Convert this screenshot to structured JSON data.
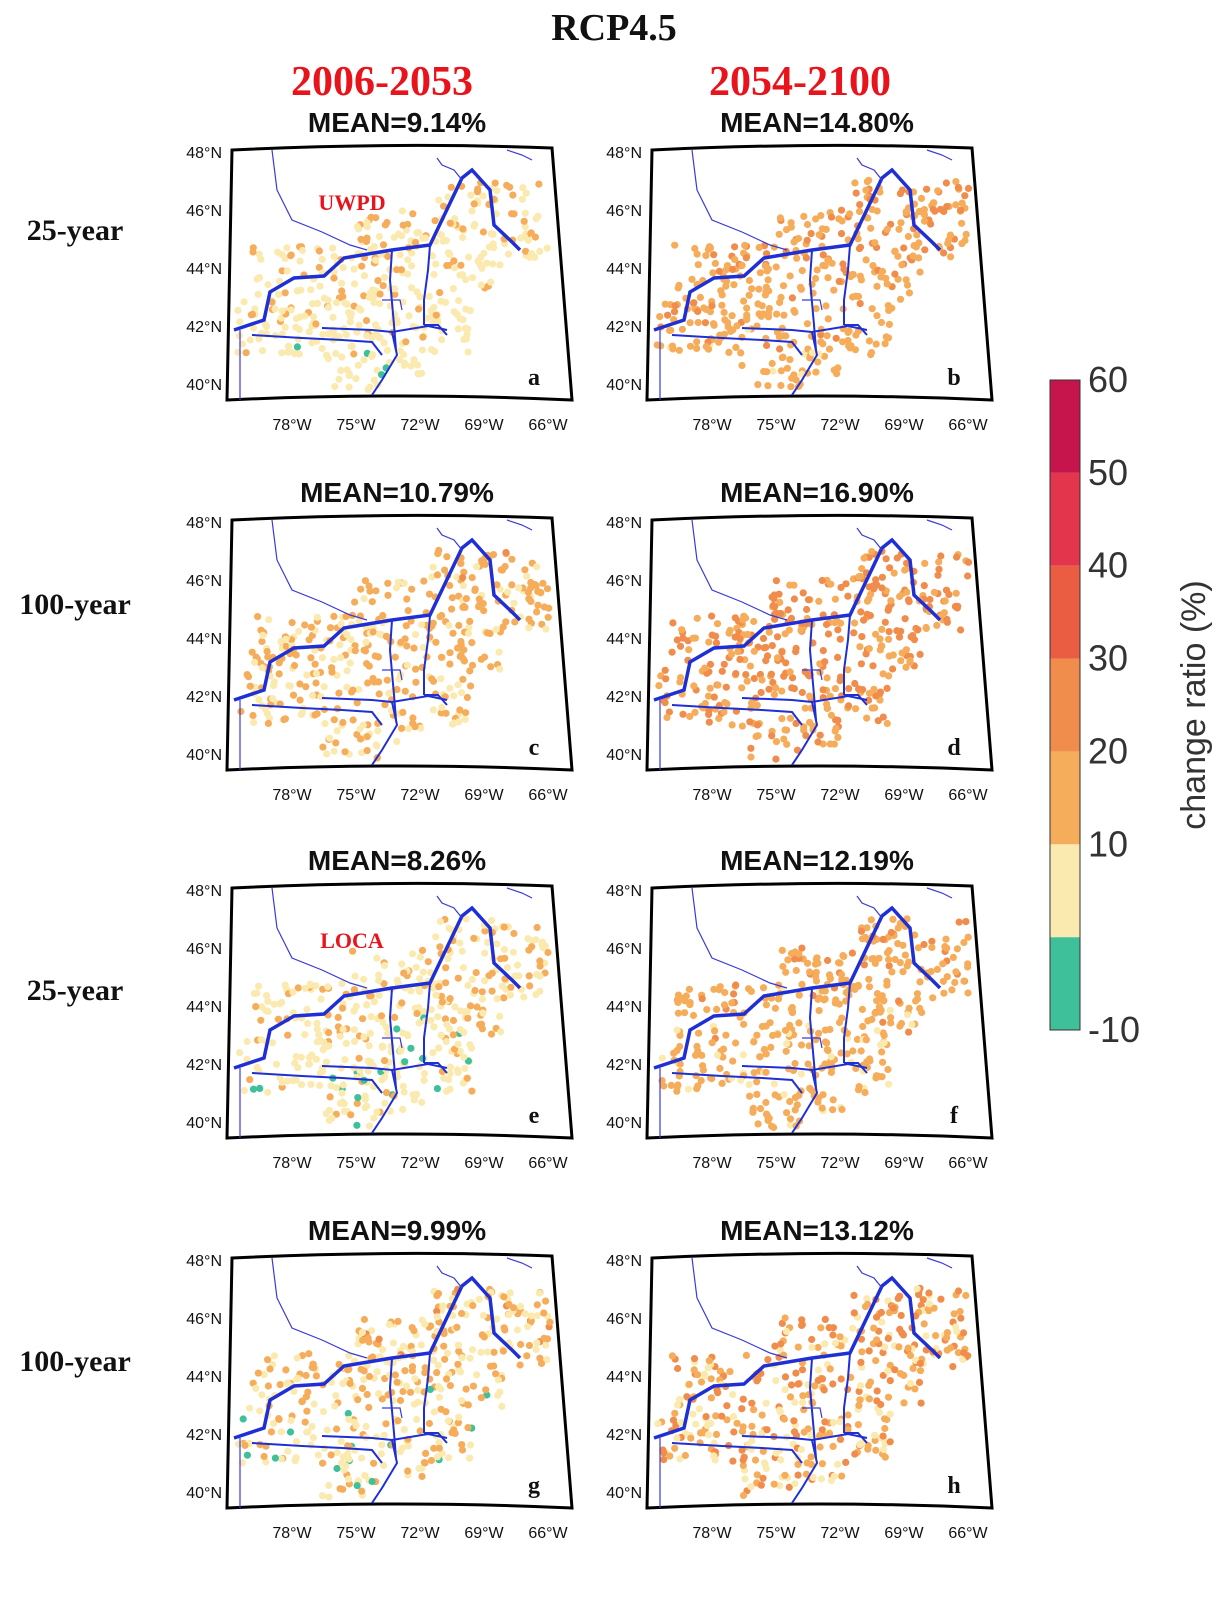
{
  "title": "RCP4.5",
  "periods": [
    "2006-2053",
    "2054-2100"
  ],
  "row_labels": [
    "25-year",
    "100-year",
    "25-year",
    "100-year"
  ],
  "lat_ticks": [
    "48°N",
    "46°N",
    "44°N",
    "42°N",
    "40°N"
  ],
  "lon_ticks": [
    "78°W",
    "75°W",
    "72°W",
    "69°W",
    "66°W"
  ],
  "colorbar": {
    "label": "change ratio (%)",
    "ticks": [
      "60",
      "50",
      "40",
      "30",
      "20",
      "10",
      "-10"
    ],
    "bins": [
      {
        "from": -10,
        "to": 0,
        "color": "#3ec19a"
      },
      {
        "from": 0,
        "to": 10,
        "color": "#fbeab0"
      },
      {
        "from": 10,
        "to": 20,
        "color": "#f6ad5b"
      },
      {
        "from": 20,
        "to": 30,
        "color": "#f08c4c"
      },
      {
        "from": 30,
        "to": 40,
        "color": "#ea5d43"
      },
      {
        "from": 40,
        "to": 50,
        "color": "#e3364c"
      },
      {
        "from": 50,
        "to": 60,
        "color": "#c5154c"
      }
    ]
  },
  "chart_data": [
    {
      "panel": "a",
      "type": "scatter-map",
      "dataset": "UWPD",
      "return_period": "25-year",
      "period": "2006-2053",
      "mean_label": "MEAN=9.14%",
      "mean": 9.14
    },
    {
      "panel": "b",
      "type": "scatter-map",
      "dataset": "UWPD",
      "return_period": "25-year",
      "period": "2054-2100",
      "mean_label": "MEAN=14.80%",
      "mean": 14.8
    },
    {
      "panel": "c",
      "type": "scatter-map",
      "dataset": "UWPD",
      "return_period": "100-year",
      "period": "2006-2053",
      "mean_label": "MEAN=10.79%",
      "mean": 10.79
    },
    {
      "panel": "d",
      "type": "scatter-map",
      "dataset": "UWPD",
      "return_period": "100-year",
      "period": "2054-2100",
      "mean_label": "MEAN=16.90%",
      "mean": 16.9
    },
    {
      "panel": "e",
      "type": "scatter-map",
      "dataset": "LOCA",
      "return_period": "25-year",
      "period": "2006-2053",
      "mean_label": "MEAN=8.26%",
      "mean": 8.26
    },
    {
      "panel": "f",
      "type": "scatter-map",
      "dataset": "LOCA",
      "return_period": "25-year",
      "period": "2054-2100",
      "mean_label": "MEAN=12.19%",
      "mean": 12.19
    },
    {
      "panel": "g",
      "type": "scatter-map",
      "dataset": "LOCA",
      "return_period": "100-year",
      "period": "2006-2053",
      "mean_label": "MEAN=9.99%",
      "mean": 9.99
    },
    {
      "panel": "h",
      "type": "scatter-map",
      "dataset": "LOCA",
      "return_period": "100-year",
      "period": "2054-2100",
      "mean_label": "MEAN=13.12%",
      "mean": 13.12
    }
  ],
  "dataset_labels": {
    "a": "UWPD",
    "e": "LOCA"
  },
  "colors": {
    "title_red": "#e8141c",
    "border_blue": "#1f2fd6",
    "river_blue": "#3a3ad8"
  }
}
